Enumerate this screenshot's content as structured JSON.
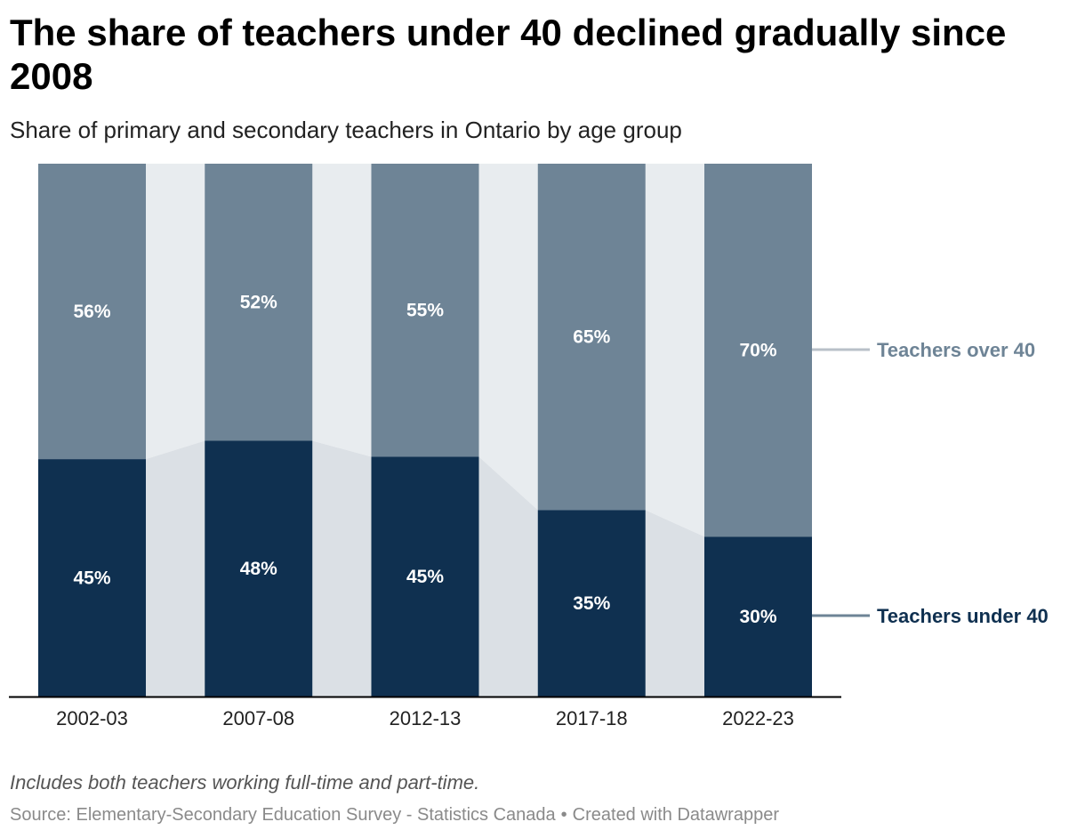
{
  "header": {
    "title": "The share of teachers under 40 declined gradually since 2008",
    "subtitle": "Share of primary and secondary teachers in Ontario by age group"
  },
  "footer": {
    "notes": "Includes both teachers working full-time and part-time.",
    "source": "Source: Elementary-Secondary Education Survey - Statistics Canada",
    "separator": "•",
    "credit": "Created with Datawrapper"
  },
  "colors": {
    "under_40": "#0f3050",
    "over_40": "#6e8496",
    "connector_under": "#dbe0e5",
    "connector_over": "#e8ecef",
    "legend_line_over": "#b8c0c8",
    "legend_line_under": "#6e8496",
    "axis": "#000000"
  },
  "chart_data": {
    "type": "bar",
    "stacked": true,
    "categories": [
      "2002-03",
      "2007-08",
      "2012-13",
      "2017-18",
      "2022-23"
    ],
    "series": [
      {
        "name": "Teachers under 40",
        "values": [
          45,
          48,
          45,
          35,
          30
        ],
        "labels": [
          "45%",
          "48%",
          "45%",
          "35%",
          "30%"
        ]
      },
      {
        "name": "Teachers over 40",
        "values": [
          56,
          52,
          55,
          65,
          70
        ],
        "labels": [
          "56%",
          "52%",
          "55%",
          "65%",
          "70%"
        ]
      }
    ],
    "ylim": [
      0,
      100
    ],
    "grid": false,
    "legend": "right, inline labels"
  }
}
